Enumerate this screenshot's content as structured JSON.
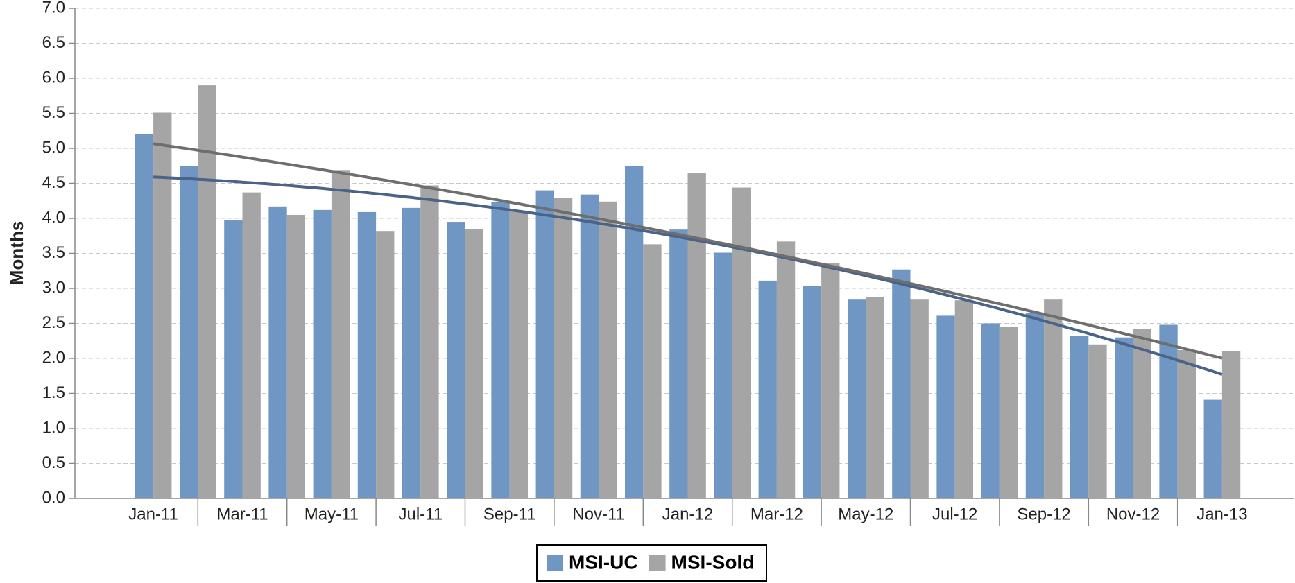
{
  "chart_data": {
    "type": "bar",
    "y_label": "Months",
    "categories": [
      "Jan-11",
      null,
      "Mar-11",
      null,
      "May-11",
      null,
      "Jul-11",
      null,
      "Sep-11",
      null,
      "Nov-11",
      null,
      "Jan-12",
      null,
      "Mar-12",
      null,
      "May-12",
      null,
      "Jul-12",
      null,
      "Sep-12",
      null,
      "Nov-12",
      null,
      "Jan-13"
    ],
    "series": [
      {
        "name": "MSI-UC",
        "color": "#7097c3",
        "trend_color": "#4a6387",
        "values": [
          5.2,
          4.75,
          3.97,
          4.17,
          4.12,
          4.09,
          4.15,
          3.95,
          4.23,
          4.4,
          4.34,
          4.75,
          3.84,
          3.51,
          3.11,
          3.03,
          2.84,
          3.27,
          2.61,
          2.5,
          2.65,
          2.32,
          2.3,
          2.48,
          1.41
        ]
      },
      {
        "name": "MSI-Sold",
        "color": "#a5a5a5",
        "trend_color": "#6e6e6e",
        "values": [
          5.51,
          5.9,
          4.37,
          4.05,
          4.69,
          3.82,
          4.47,
          3.85,
          4.1,
          4.29,
          4.24,
          3.63,
          4.65,
          4.44,
          3.67,
          3.36,
          2.88,
          2.84,
          2.83,
          2.45,
          2.84,
          2.2,
          2.42,
          2.12,
          2.1
        ]
      }
    ],
    "trendline": "polynomial",
    "ylim": [
      0,
      7
    ],
    "yticks": [
      {
        "value": 0,
        "label": "0.0"
      },
      {
        "value": 0.5,
        "label": "0.5"
      },
      {
        "value": 1,
        "label": "1.0"
      },
      {
        "value": 1.5,
        "label": "1.5"
      },
      {
        "value": 2,
        "label": "2.0"
      },
      {
        "value": 2.5,
        "label": "2.5"
      },
      {
        "value": 3,
        "label": "3.0"
      },
      {
        "value": 3.5,
        "label": "3.5"
      },
      {
        "value": 4,
        "label": "4.0"
      },
      {
        "value": 4.5,
        "label": "4.5"
      },
      {
        "value": 5,
        "label": "5.0"
      },
      {
        "value": 5.5,
        "label": "5.5"
      },
      {
        "value": 6,
        "label": "6.0"
      },
      {
        "value": 6.5,
        "label": "6.5"
      },
      {
        "value": 7,
        "label": "7.0"
      }
    ],
    "grid": true,
    "legend": "bottom"
  }
}
